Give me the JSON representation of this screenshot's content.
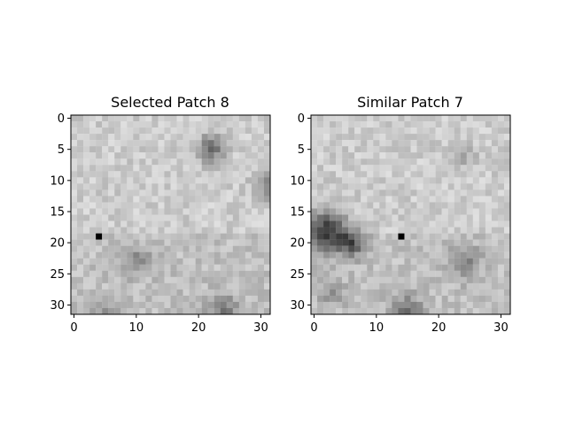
{
  "figure": {
    "panels": [
      {
        "title": "Selected Patch 8",
        "x_ticks": [
          "0",
          "10",
          "20",
          "30"
        ],
        "y_ticks": [
          "0",
          "5",
          "10",
          "15",
          "20",
          "25",
          "30"
        ]
      },
      {
        "title": "Similar Patch 7",
        "x_ticks": [
          "0",
          "10",
          "20",
          "30"
        ],
        "y_ticks": [
          "0",
          "5",
          "10",
          "15",
          "20",
          "25",
          "30"
        ]
      }
    ],
    "colormap": "grayscale",
    "grid_size": 32
  }
}
